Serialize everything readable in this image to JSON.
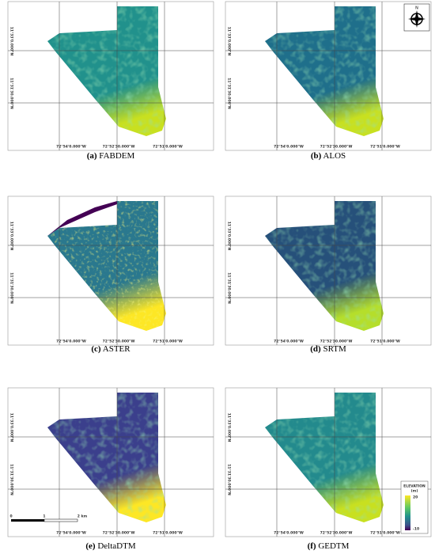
{
  "panels": [
    {
      "letter": "(a)",
      "name": "FABDEM"
    },
    {
      "letter": "(b)",
      "name": "ALOS"
    },
    {
      "letter": "(c)",
      "name": "ASTER"
    },
    {
      "letter": "(d)",
      "name": "SRTM"
    },
    {
      "letter": "(e)",
      "name": "DeltaDTM"
    },
    {
      "letter": "(f)",
      "name": "GEDTM"
    }
  ],
  "lon_labels": [
    "72°54'0.000\"W",
    "72°52'30.000\"W",
    "72°51'0.000\"W"
  ],
  "lat_labels": [
    "11°33'0.000\"N",
    "11°31'30.000\"N"
  ],
  "compass": "N",
  "scale_bar": [
    "0",
    "1",
    "2 km"
  ],
  "legend": {
    "title": "ELEVATION",
    "unit": "(m)",
    "max": "20",
    "min": "-10"
  }
}
